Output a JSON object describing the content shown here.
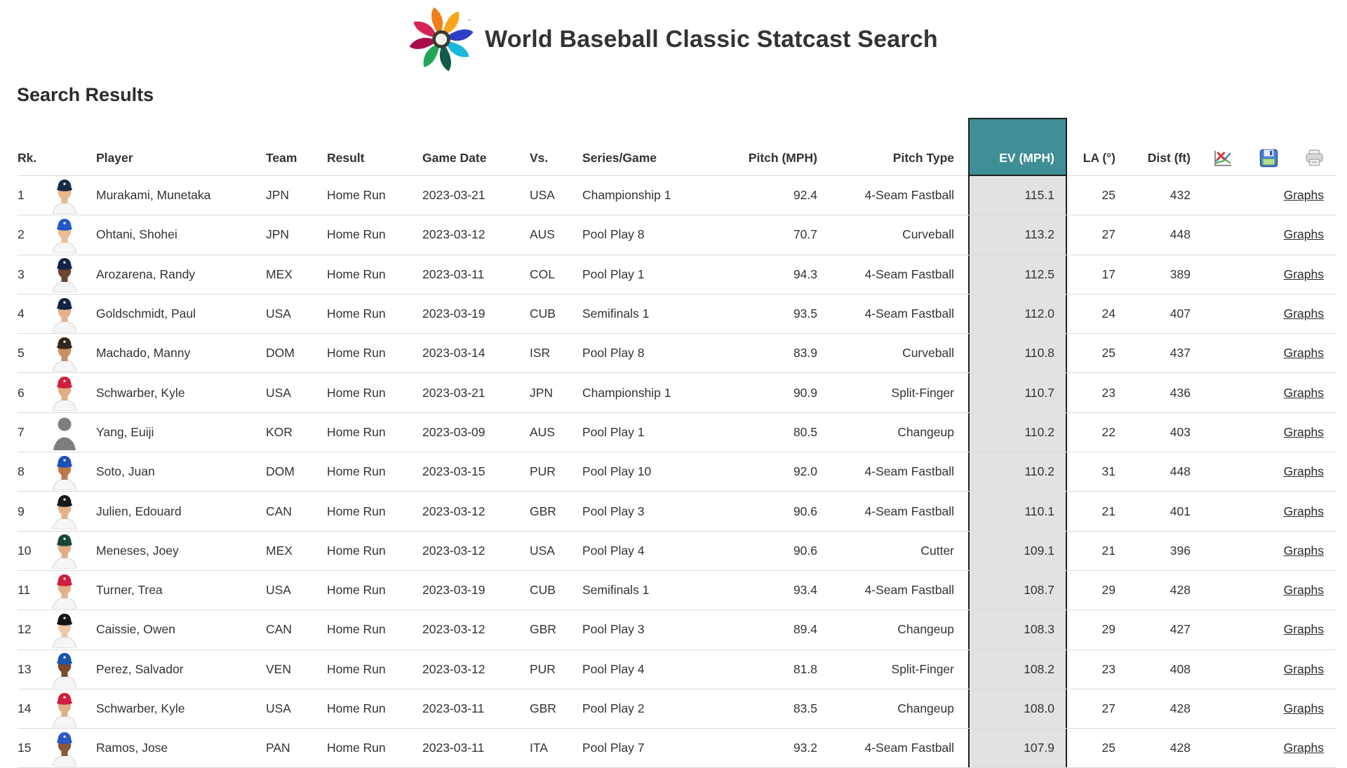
{
  "header": {
    "title": "World Baseball Classic Statcast Search"
  },
  "section": {
    "heading": "Search Results"
  },
  "logo": {
    "name": "wbc-pinwheel-logo",
    "blade_colors": [
      "#F9A51A",
      "#2D3FC4",
      "#18B8DA",
      "#14594A",
      "#23A557",
      "#A80D49",
      "#D62454",
      "#EF7F1A"
    ],
    "ring_color": "#3A3B31",
    "center_color": "#F2F1EC",
    "trademark": "™"
  },
  "table": {
    "columns": {
      "rk": "Rk.",
      "player": "Player",
      "team": "Team",
      "result": "Result",
      "game_date": "Game Date",
      "vs": "Vs.",
      "series_game": "Series/Game",
      "pitch_mph": "Pitch (MPH)",
      "pitch_type": "Pitch Type",
      "ev_mph": "EV (MPH)",
      "la": "LA (°)",
      "dist": "Dist (ft)"
    },
    "header_icons": [
      "chart-icon",
      "save-icon",
      "print-icon"
    ],
    "graphs_label": "Graphs",
    "colors": {
      "ev_header_bg": "#3E8E96",
      "ev_header_text": "#FFFFFF",
      "ev_cell_bg": "#E2E2E2",
      "ev_border": "#1F1F1F",
      "row_divider": "#DBDBDB",
      "text": "#333333"
    },
    "rows": [
      {
        "rk": "1",
        "player": "Murakami, Munetaka",
        "team": "JPN",
        "result": "Home Run",
        "game_date": "2023-03-21",
        "vs": "USA",
        "series_game": "Championship 1",
        "pitch_mph": "92.4",
        "pitch_type": "4-Seam Fastball",
        "ev_mph": "115.1",
        "la": "25",
        "dist": "432",
        "avatar": {
          "type": "photo",
          "cap": "#1c2a4a",
          "skin": "#e9b88c"
        }
      },
      {
        "rk": "2",
        "player": "Ohtani, Shohei",
        "team": "JPN",
        "result": "Home Run",
        "game_date": "2023-03-12",
        "vs": "AUS",
        "series_game": "Pool Play 8",
        "pitch_mph": "70.7",
        "pitch_type": "Curveball",
        "ev_mph": "113.2",
        "la": "27",
        "dist": "448",
        "avatar": {
          "type": "photo",
          "cap": "#2457c5",
          "skin": "#e9bd96"
        }
      },
      {
        "rk": "3",
        "player": "Arozarena, Randy",
        "team": "MEX",
        "result": "Home Run",
        "game_date": "2023-03-11",
        "vs": "COL",
        "series_game": "Pool Play 1",
        "pitch_mph": "94.3",
        "pitch_type": "4-Seam Fastball",
        "ev_mph": "112.5",
        "la": "17",
        "dist": "389",
        "avatar": {
          "type": "photo",
          "cap": "#132448",
          "skin": "#6b4630"
        }
      },
      {
        "rk": "4",
        "player": "Goldschmidt, Paul",
        "team": "USA",
        "result": "Home Run",
        "game_date": "2023-03-19",
        "vs": "CUB",
        "series_game": "Semifinals 1",
        "pitch_mph": "93.5",
        "pitch_type": "4-Seam Fastball",
        "ev_mph": "112.0",
        "la": "24",
        "dist": "407",
        "avatar": {
          "type": "photo",
          "cap": "#15243f",
          "skin": "#e3b28a"
        }
      },
      {
        "rk": "5",
        "player": "Machado, Manny",
        "team": "DOM",
        "result": "Home Run",
        "game_date": "2023-03-14",
        "vs": "ISR",
        "series_game": "Pool Play 8",
        "pitch_mph": "83.9",
        "pitch_type": "Curveball",
        "ev_mph": "110.8",
        "la": "25",
        "dist": "437",
        "avatar": {
          "type": "photo",
          "cap": "#33261c",
          "skin": "#c98e63"
        }
      },
      {
        "rk": "6",
        "player": "Schwarber, Kyle",
        "team": "USA",
        "result": "Home Run",
        "game_date": "2023-03-21",
        "vs": "JPN",
        "series_game": "Championship 1",
        "pitch_mph": "90.9",
        "pitch_type": "Split-Finger",
        "ev_mph": "110.7",
        "la": "23",
        "dist": "436",
        "avatar": {
          "type": "photo",
          "cap": "#cf1f3e",
          "skin": "#dfae85"
        }
      },
      {
        "rk": "7",
        "player": "Yang, Euiji",
        "team": "KOR",
        "result": "Home Run",
        "game_date": "2023-03-09",
        "vs": "AUS",
        "series_game": "Pool Play 1",
        "pitch_mph": "80.5",
        "pitch_type": "Changeup",
        "ev_mph": "110.2",
        "la": "22",
        "dist": "403",
        "avatar": {
          "type": "silhouette",
          "cap": "#7e7e7e",
          "skin": "#7e7e7e"
        }
      },
      {
        "rk": "8",
        "player": "Soto, Juan",
        "team": "DOM",
        "result": "Home Run",
        "game_date": "2023-03-15",
        "vs": "PUR",
        "series_game": "Pool Play 10",
        "pitch_mph": "92.0",
        "pitch_type": "4-Seam Fastball",
        "ev_mph": "110.2",
        "la": "31",
        "dist": "448",
        "avatar": {
          "type": "photo",
          "cap": "#1d50b8",
          "skin": "#b97a4e"
        }
      },
      {
        "rk": "9",
        "player": "Julien, Edouard",
        "team": "CAN",
        "result": "Home Run",
        "game_date": "2023-03-12",
        "vs": "GBR",
        "series_game": "Pool Play 3",
        "pitch_mph": "90.6",
        "pitch_type": "4-Seam Fastball",
        "ev_mph": "110.1",
        "la": "21",
        "dist": "401",
        "avatar": {
          "type": "photo",
          "cap": "#18181a",
          "skin": "#e3b28a"
        }
      },
      {
        "rk": "10",
        "player": "Meneses, Joey",
        "team": "MEX",
        "result": "Home Run",
        "game_date": "2023-03-12",
        "vs": "USA",
        "series_game": "Pool Play 4",
        "pitch_mph": "90.6",
        "pitch_type": "Cutter",
        "ev_mph": "109.1",
        "la": "21",
        "dist": "396",
        "avatar": {
          "type": "photo",
          "cap": "#174733",
          "skin": "#e0ad84"
        }
      },
      {
        "rk": "11",
        "player": "Turner, Trea",
        "team": "USA",
        "result": "Home Run",
        "game_date": "2023-03-19",
        "vs": "CUB",
        "series_game": "Semifinals 1",
        "pitch_mph": "93.4",
        "pitch_type": "4-Seam Fastball",
        "ev_mph": "108.7",
        "la": "29",
        "dist": "428",
        "avatar": {
          "type": "photo",
          "cap": "#cf1f3e",
          "skin": "#e3b28a"
        }
      },
      {
        "rk": "12",
        "player": "Caissie, Owen",
        "team": "CAN",
        "result": "Home Run",
        "game_date": "2023-03-12",
        "vs": "GBR",
        "series_game": "Pool Play 3",
        "pitch_mph": "89.4",
        "pitch_type": "Changeup",
        "ev_mph": "108.3",
        "la": "29",
        "dist": "427",
        "avatar": {
          "type": "photo",
          "cap": "#141416",
          "skin": "#f0c8a8"
        }
      },
      {
        "rk": "13",
        "player": "Perez, Salvador",
        "team": "VEN",
        "result": "Home Run",
        "game_date": "2023-03-12",
        "vs": "PUR",
        "series_game": "Pool Play 4",
        "pitch_mph": "81.8",
        "pitch_type": "Split-Finger",
        "ev_mph": "108.2",
        "la": "23",
        "dist": "408",
        "avatar": {
          "type": "photo",
          "cap": "#1b56a8",
          "skin": "#7a4a2e"
        }
      },
      {
        "rk": "14",
        "player": "Schwarber, Kyle",
        "team": "USA",
        "result": "Home Run",
        "game_date": "2023-03-11",
        "vs": "GBR",
        "series_game": "Pool Play 2",
        "pitch_mph": "83.5",
        "pitch_type": "Changeup",
        "ev_mph": "108.0",
        "la": "27",
        "dist": "428",
        "avatar": {
          "type": "photo",
          "cap": "#cf1f3e",
          "skin": "#dfae85"
        }
      },
      {
        "rk": "15",
        "player": "Ramos, Jose",
        "team": "PAN",
        "result": "Home Run",
        "game_date": "2023-03-11",
        "vs": "ITA",
        "series_game": "Pool Play 7",
        "pitch_mph": "93.2",
        "pitch_type": "4-Seam Fastball",
        "ev_mph": "107.9",
        "la": "25",
        "dist": "428",
        "avatar": {
          "type": "photo",
          "cap": "#2e56c6",
          "skin": "#8a5a38"
        }
      }
    ]
  }
}
